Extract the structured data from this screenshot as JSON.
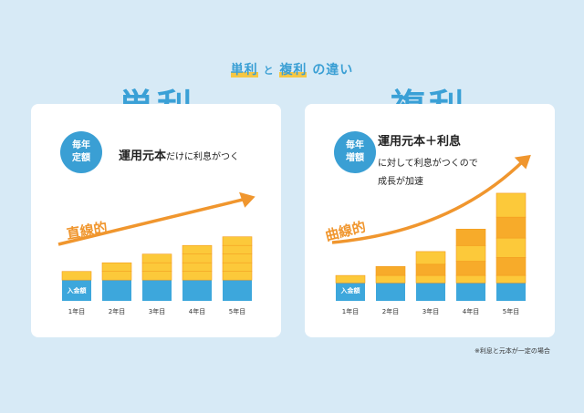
{
  "header": {
    "title_part1": "単利",
    "title_mid": "と",
    "title_part2": "複利",
    "title_end": "の違い"
  },
  "left": {
    "heading": "単利",
    "badge_line1": "毎年",
    "badge_line2": "定額",
    "desc_bold": "運用元本",
    "desc_rest": "だけに利息がつく",
    "curve_label": "直線的"
  },
  "right": {
    "heading": "複利",
    "badge_line1": "毎年",
    "badge_line2": "増額",
    "desc_bold": "運用元本＋利息",
    "desc_line2": "に対して利息がつくので",
    "desc_line3": "成長が加速",
    "curve_label": "曲線的"
  },
  "footnote": "※利息と元本が一定の場合",
  "colors": {
    "principal": "#3da7dc",
    "interest_light": "#fcc93a",
    "interest_dark": "#f7ab2a",
    "arrow": "#f0962e",
    "accent": "#3a9fd4"
  },
  "chart_data": [
    {
      "type": "bar",
      "stacked": true,
      "categories": [
        "1年目",
        "2年目",
        "3年目",
        "4年目",
        "5年目"
      ],
      "series": [
        {
          "name": "入金額",
          "values": [
            2.4,
            2.4,
            2.4,
            2.4,
            2.4
          ]
        },
        {
          "values": [
            1,
            1,
            1,
            1,
            1
          ]
        },
        {
          "values": [
            0,
            1,
            1,
            1,
            1
          ]
        },
        {
          "values": [
            0,
            0,
            1,
            1,
            1
          ]
        },
        {
          "values": [
            0,
            0,
            0,
            1,
            1
          ]
        },
        {
          "values": [
            0,
            0,
            0,
            0,
            1
          ]
        }
      ],
      "annotation": "直線的"
    },
    {
      "type": "bar",
      "stacked": true,
      "categories": [
        "1年目",
        "2年目",
        "3年目",
        "4年目",
        "5年目"
      ],
      "series": [
        {
          "name": "入金額",
          "values": [
            2.4,
            2.4,
            2.4,
            2.4,
            2.4
          ]
        },
        {
          "values": [
            1,
            1,
            1,
            1,
            1
          ]
        },
        {
          "values": [
            0,
            1.2,
            1.5,
            1.9,
            2.4
          ]
        },
        {
          "values": [
            0,
            0,
            1.7,
            2.1,
            2.6
          ]
        },
        {
          "values": [
            0,
            0,
            0,
            2.2,
            2.8
          ]
        },
        {
          "values": [
            0,
            0,
            0,
            0,
            3.2
          ]
        }
      ],
      "annotation": "曲線的"
    }
  ]
}
